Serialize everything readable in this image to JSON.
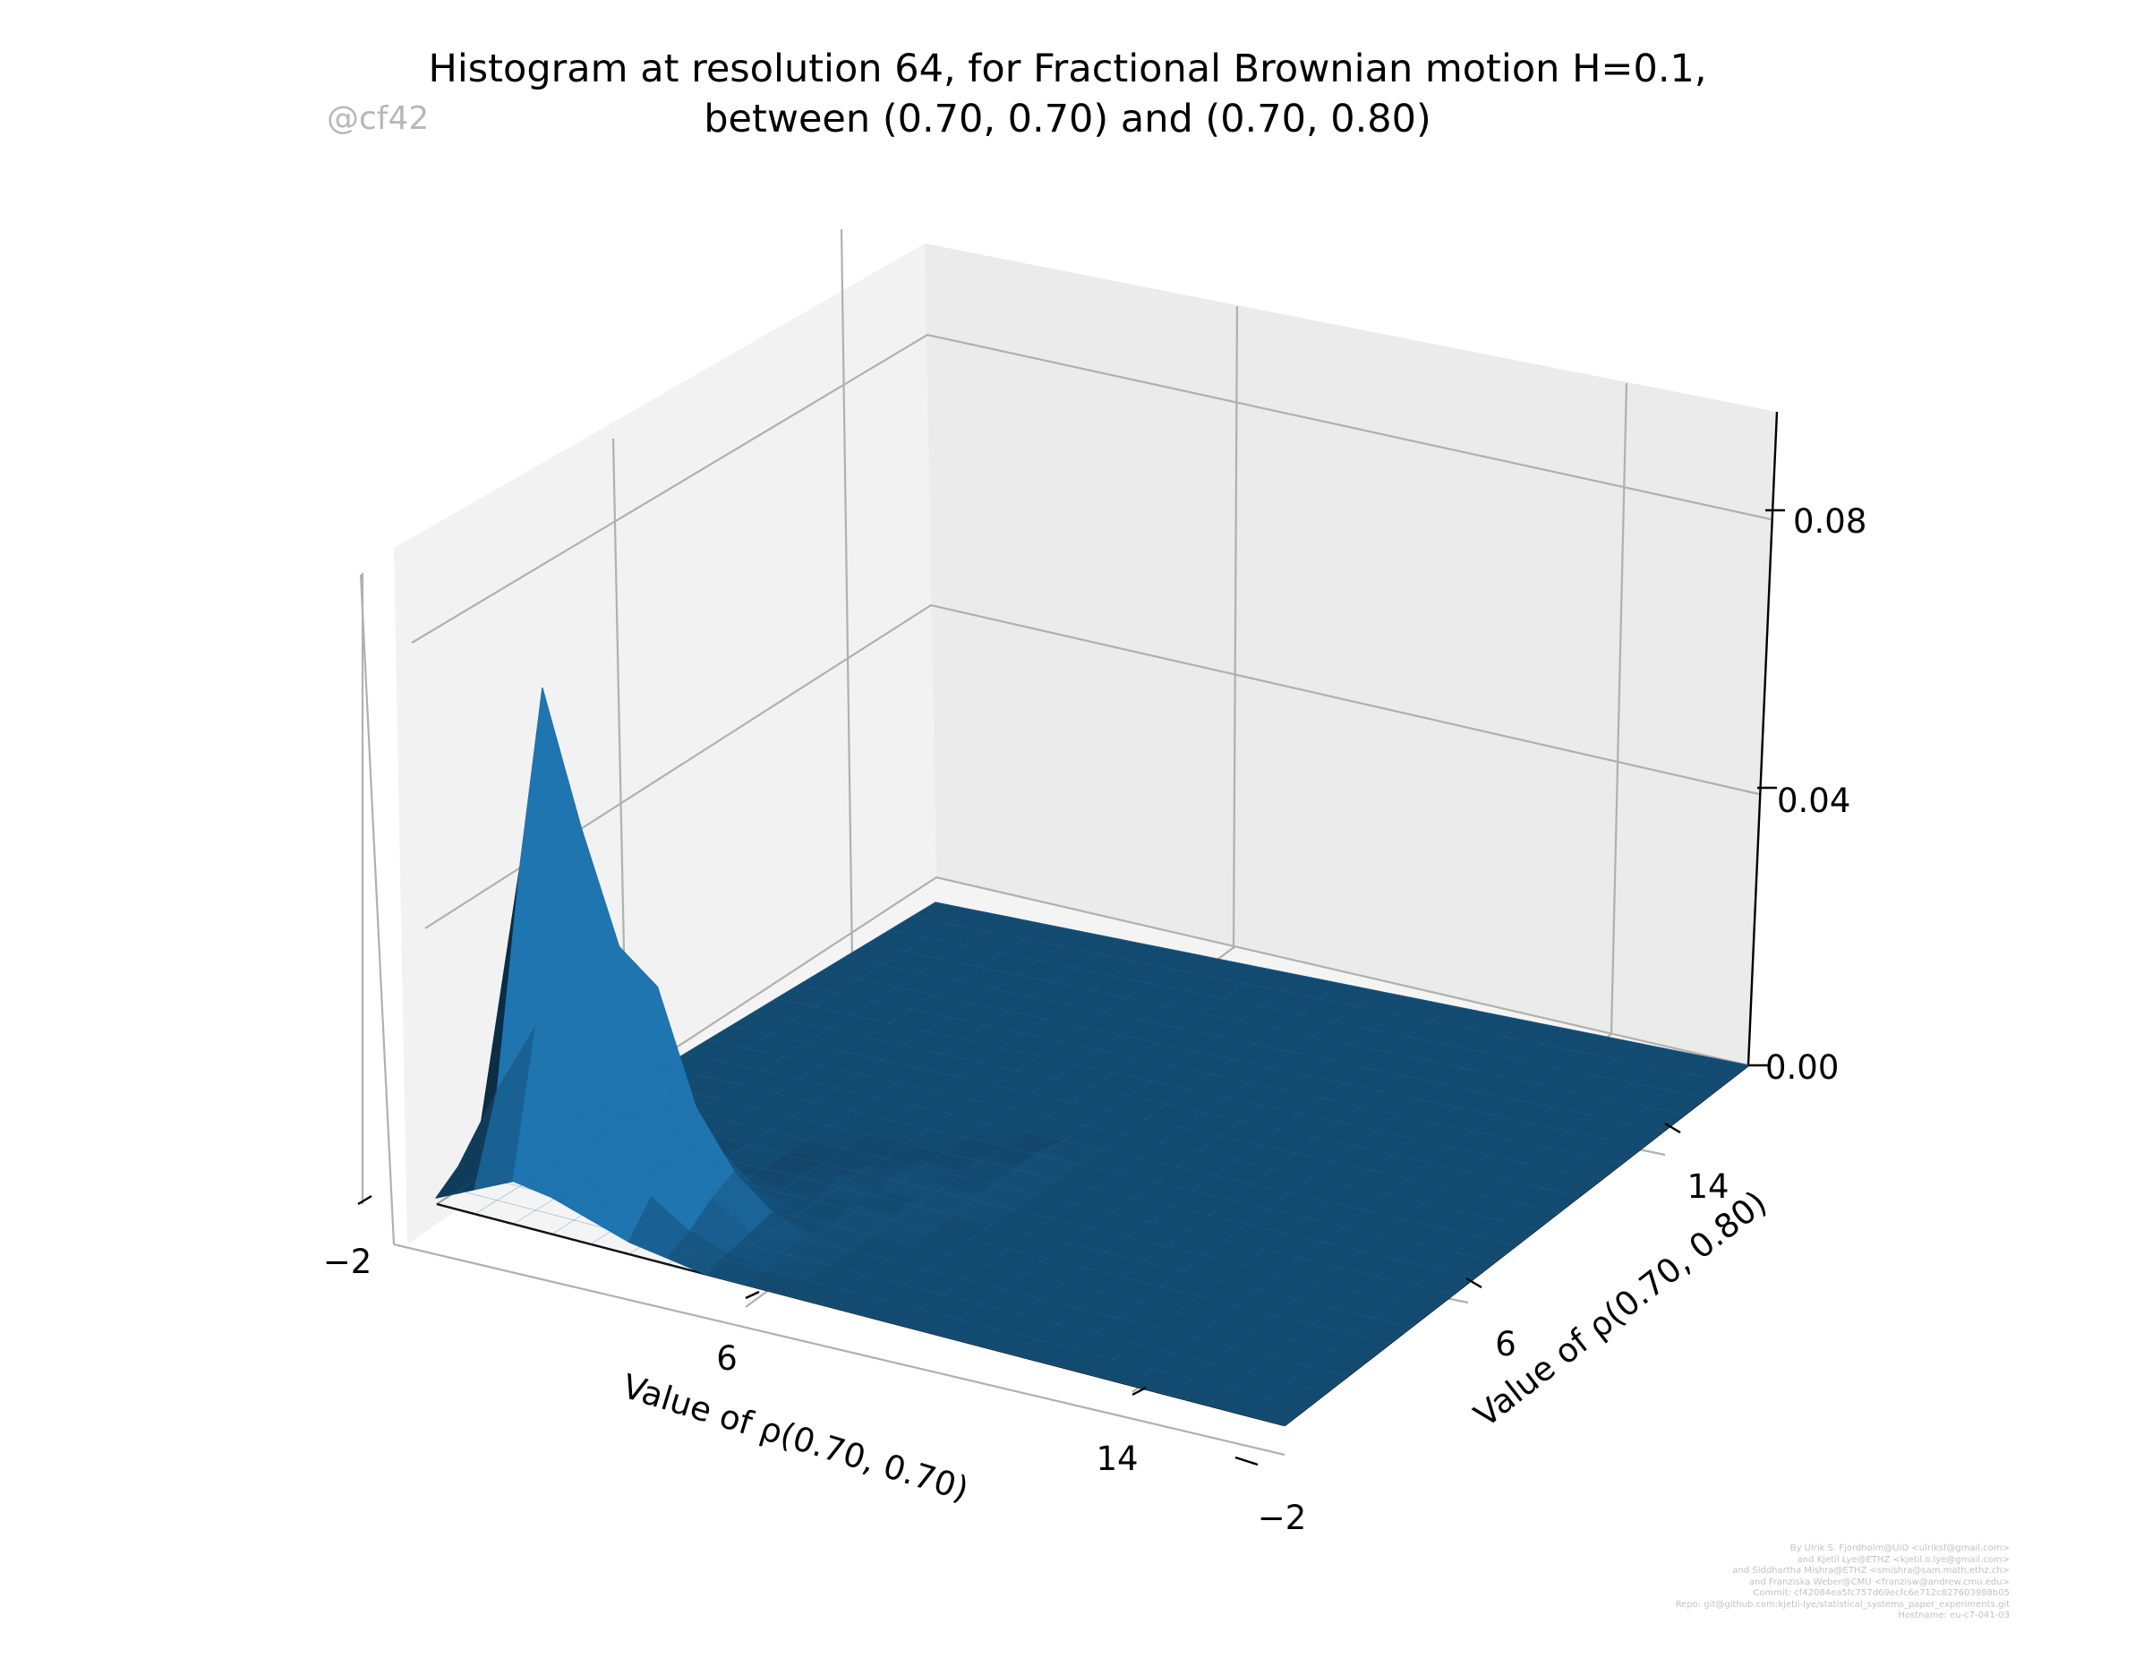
{
  "title": {
    "line1": "Histogram at resolution 64, for Fractional Brownian motion H=0.1,",
    "line2": "between (0.70, 0.70) and (0.70, 0.80)"
  },
  "watermark": "@cf42",
  "credits": [
    "By Ulrik S. Fjordholm@UiO <ulriksf@gmail.com>",
    "and Kjetil Lye@ETHZ <kjetil.o.lye@gmail.com>",
    "and Siddhartha Mishra@ETHZ <smishra@sam.math.ethz.ch>",
    "and Franziska Weber@CMU <franzisw@andrew.cmu.edu>",
    "Commit: cf42084ea5fc757d69ecfc6e712c827603988b05",
    "Repo: git@github.com:kjetil-lye/statistical_systems_paper_experiments.git",
    "Hostname: eu-c7-041-03"
  ],
  "chart_data": {
    "type": "surface",
    "title": "Histogram at resolution 64, for Fractional Brownian motion H=0.1, between (0.70, 0.70) and (0.70, 0.80)",
    "xlabel": "Value of ρ(0.70, 0.70)",
    "ylabel": "Value of ρ(0.70, 0.80)",
    "zlabel": "",
    "x_ticks": [
      "−2",
      "6",
      "14"
    ],
    "y_ticks": [
      "−2",
      "6",
      "14"
    ],
    "z_ticks": [
      "0.00",
      "0.04",
      "0.08"
    ],
    "xlim": [
      -2,
      20
    ],
    "ylim": [
      -2,
      20
    ],
    "zlim": [
      0,
      0.09
    ],
    "grid": true,
    "surface_color": "#1f77b4",
    "x": [
      -2,
      -1,
      0,
      1,
      2,
      3,
      4,
      5,
      6,
      7,
      8,
      9,
      10,
      11,
      12,
      13,
      14,
      15,
      16,
      17,
      18,
      19,
      20
    ],
    "y": [
      -2,
      -1,
      0,
      1,
      2,
      3,
      4,
      5,
      6,
      7,
      8,
      9,
      10,
      11,
      12,
      13,
      14,
      15,
      16,
      17,
      18,
      19,
      20
    ],
    "z": [
      [
        0.001,
        0.004,
        0.009,
        0.011,
        0.006,
        0.002,
        0,
        0,
        0,
        0,
        0,
        0,
        0,
        0,
        0,
        0,
        0,
        0,
        0,
        0,
        0,
        0,
        0
      ],
      [
        0.004,
        0.018,
        0.052,
        0.079,
        0.034,
        0.008,
        0.001,
        0,
        0,
        0,
        0,
        0,
        0,
        0,
        0,
        0,
        0,
        0,
        0,
        0,
        0,
        0,
        0
      ],
      [
        0.007,
        0.03,
        0.055,
        0.058,
        0.022,
        0.006,
        0.001,
        0,
        0,
        0,
        0,
        0,
        0,
        0,
        0,
        0,
        0,
        0,
        0,
        0,
        0,
        0,
        0
      ],
      [
        0.006,
        0.022,
        0.04,
        0.04,
        0.017,
        0.005,
        0.001,
        0,
        0,
        0,
        0,
        0,
        0,
        0,
        0,
        0,
        0,
        0,
        0,
        0,
        0,
        0,
        0
      ],
      [
        0.004,
        0.014,
        0.03,
        0.035,
        0.015,
        0.004,
        0.001,
        0,
        0,
        0,
        0,
        0,
        0,
        0,
        0,
        0,
        0,
        0,
        0,
        0,
        0,
        0,
        0
      ],
      [
        0.002,
        0.007,
        0.016,
        0.017,
        0.008,
        0.002,
        0,
        0,
        0,
        0,
        0,
        0,
        0,
        0,
        0,
        0,
        0,
        0,
        0,
        0,
        0,
        0,
        0
      ],
      [
        0.001,
        0.003,
        0.006,
        0.008,
        0.003,
        0.001,
        0.001,
        0.001,
        0,
        0,
        0,
        0,
        0,
        0,
        0,
        0,
        0,
        0,
        0,
        0,
        0,
        0,
        0
      ],
      [
        0,
        0.001,
        0.002,
        0.003,
        0.001,
        0.001,
        0.002,
        0.001,
        0.001,
        0,
        0,
        0,
        0,
        0,
        0,
        0,
        0,
        0,
        0,
        0,
        0,
        0,
        0
      ],
      [
        0,
        0,
        0.001,
        0.001,
        0.001,
        0.001,
        0.001,
        0.002,
        0.001,
        0,
        0,
        0,
        0,
        0,
        0,
        0,
        0,
        0,
        0,
        0,
        0,
        0,
        0
      ],
      [
        0,
        0,
        0,
        0,
        0,
        0.001,
        0.001,
        0.001,
        0.001,
        0.001,
        0,
        0,
        0,
        0,
        0,
        0,
        0,
        0,
        0,
        0,
        0,
        0,
        0
      ],
      [
        0,
        0,
        0,
        0,
        0,
        0,
        0,
        0.001,
        0.001,
        0.001,
        0.001,
        0,
        0,
        0,
        0,
        0,
        0,
        0,
        0,
        0,
        0,
        0,
        0
      ],
      [
        0,
        0,
        0,
        0,
        0,
        0,
        0,
        0,
        0,
        0,
        0,
        0,
        0,
        0,
        0,
        0,
        0,
        0,
        0,
        0,
        0,
        0,
        0
      ],
      [
        0,
        0,
        0,
        0,
        0,
        0,
        0,
        0,
        0,
        0,
        0,
        0,
        0,
        0,
        0,
        0,
        0,
        0,
        0,
        0,
        0,
        0,
        0
      ],
      [
        0,
        0,
        0,
        0,
        0,
        0,
        0,
        0,
        0,
        0,
        0,
        0,
        0,
        0,
        0,
        0,
        0,
        0,
        0,
        0,
        0,
        0,
        0
      ],
      [
        0,
        0,
        0,
        0,
        0,
        0,
        0,
        0,
        0,
        0,
        0,
        0,
        0,
        0,
        0,
        0,
        0,
        0,
        0,
        0,
        0,
        0,
        0
      ],
      [
        0,
        0,
        0,
        0,
        0,
        0,
        0,
        0,
        0,
        0,
        0,
        0,
        0,
        0,
        0,
        0,
        0,
        0,
        0,
        0,
        0,
        0,
        0
      ],
      [
        0,
        0,
        0,
        0,
        0,
        0,
        0,
        0,
        0,
        0,
        0,
        0,
        0,
        0,
        0,
        0,
        0,
        0,
        0,
        0,
        0,
        0,
        0
      ],
      [
        0,
        0,
        0,
        0,
        0,
        0,
        0,
        0,
        0,
        0,
        0,
        0,
        0,
        0,
        0,
        0,
        0,
        0,
        0,
        0,
        0,
        0,
        0
      ],
      [
        0,
        0,
        0,
        0,
        0,
        0,
        0,
        0,
        0,
        0,
        0,
        0,
        0,
        0,
        0,
        0,
        0,
        0,
        0,
        0,
        0,
        0,
        0
      ],
      [
        0,
        0,
        0,
        0,
        0,
        0,
        0,
        0,
        0,
        0,
        0,
        0,
        0,
        0,
        0,
        0,
        0,
        0,
        0,
        0,
        0,
        0,
        0
      ],
      [
        0,
        0,
        0,
        0,
        0,
        0,
        0,
        0,
        0,
        0,
        0,
        0,
        0,
        0,
        0,
        0,
        0,
        0,
        0,
        0,
        0,
        0,
        0
      ],
      [
        0,
        0,
        0,
        0,
        0,
        0,
        0,
        0,
        0,
        0,
        0,
        0,
        0,
        0,
        0,
        0,
        0,
        0,
        0,
        0,
        0,
        0,
        0
      ],
      [
        0,
        0,
        0,
        0,
        0,
        0,
        0,
        0,
        0,
        0,
        0,
        0,
        0,
        0,
        0,
        0,
        0,
        0,
        0,
        0,
        0,
        0,
        0
      ]
    ]
  }
}
